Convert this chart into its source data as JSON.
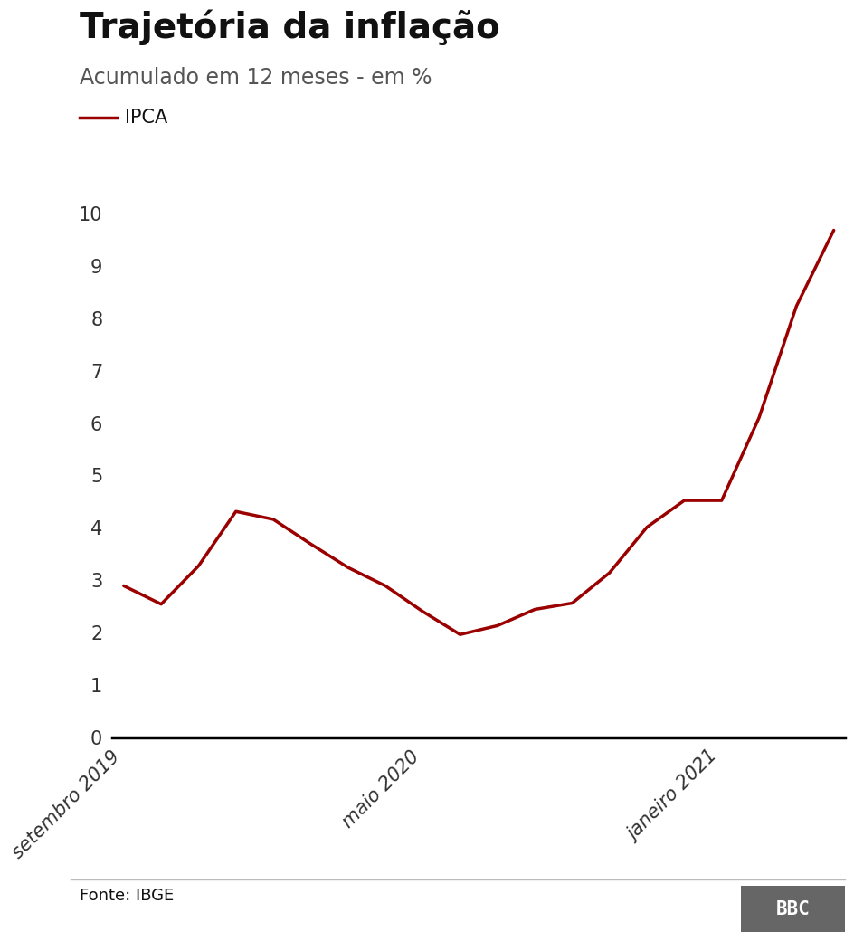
{
  "title": "Trajetória da inflação",
  "subtitle": "Acumulado em 12 meses - em %",
  "legend_label": "IPCA",
  "line_color": "#9b0000",
  "fonte": "Fonte: IBGE",
  "x_labels": [
    "setembro 2019",
    "maio 2020",
    "janeiro 2021"
  ],
  "x_tick_positions": [
    0,
    8,
    16
  ],
  "yticks": [
    0,
    1,
    2,
    3,
    4,
    5,
    6,
    7,
    8,
    9,
    10
  ],
  "ylim": [
    0,
    10.5
  ],
  "x_values": [
    0,
    1,
    2,
    3,
    4,
    5,
    6,
    7,
    8,
    9,
    10,
    11,
    12,
    13,
    14,
    15,
    16,
    17,
    18,
    19
  ],
  "y_values": [
    2.89,
    2.54,
    3.27,
    4.31,
    4.16,
    3.69,
    3.24,
    2.89,
    2.4,
    1.96,
    2.13,
    2.44,
    2.56,
    3.14,
    4.01,
    4.52,
    4.52,
    6.1,
    8.23,
    9.68
  ],
  "background_color": "#ffffff",
  "title_fontsize": 28,
  "subtitle_fontsize": 17,
  "legend_fontsize": 15,
  "tick_fontsize": 15,
  "line_width": 2.5,
  "footer_fontsize": 13,
  "bbc_box_color": "#666666"
}
